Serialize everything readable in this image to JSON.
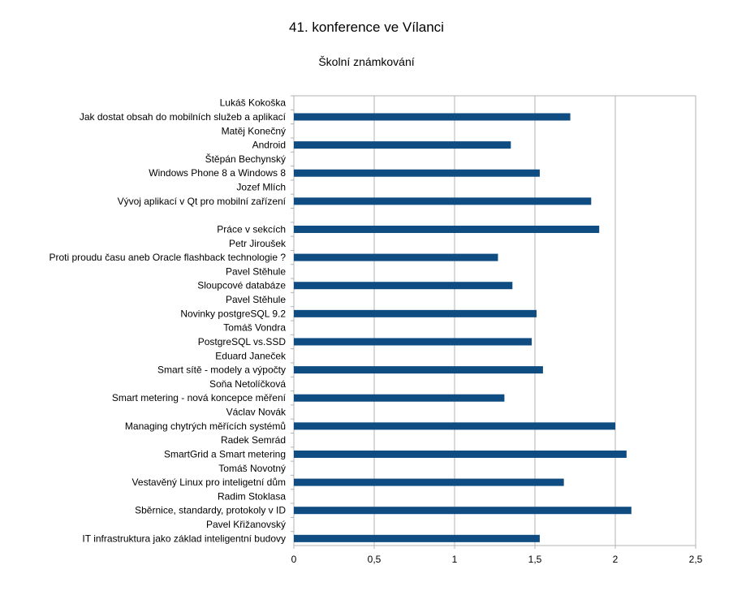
{
  "chart_data": {
    "type": "bar",
    "orientation": "horizontal",
    "title": "41. konference ve Vílanci",
    "subtitle": "Školní známkování",
    "xlabel": "",
    "ylabel": "",
    "xlim": [
      0,
      2.5
    ],
    "x_ticks": [
      "0",
      "0,5",
      "1",
      "1,5",
      "2",
      "2,5"
    ],
    "grid": "vertical",
    "legend": "none",
    "bar_color": "#0f4c81",
    "categories": [
      "Lukáš Kokoška",
      "Jak dostat obsah do mobilních služeb a aplikací",
      "Matěj Konečný",
      "Android",
      "Štěpán Bechynský",
      "Windows Phone 8 a Windows 8",
      "Jozef Mlích",
      "Vývoj aplikací v Qt pro mobilní zařízení",
      "",
      "Práce v sekcích",
      "Petr Jiroušek",
      "Proti proudu času aneb Oracle flashback technologie ?",
      "Pavel Stěhule",
      "Sloupcové databáze",
      "Pavel Stěhule",
      "Novinky postgreSQL 9.2",
      "Tomáš Vondra",
      "PostgreSQL vs.SSD",
      "Eduard Janeček",
      "Smart sítě - modely a výpočty",
      "Soňa Netolíčková",
      "Smart metering - nová koncepce měření",
      "Václav Novák",
      "Managing chytrých měřících systémů",
      "Radek Semrád",
      "SmartGrid a Smart metering",
      "Tomáš Novotný",
      "Vestavěný Linux pro inteligetní dům",
      "Radim Stoklasa",
      "Sběrnice, standardy, protokoly v ID",
      "Pavel Křižanovský",
      "IT infrastruktura jako základ inteligentní budovy"
    ],
    "values": [
      null,
      1.72,
      null,
      1.35,
      null,
      1.53,
      null,
      1.85,
      null,
      1.9,
      null,
      1.27,
      null,
      1.36,
      null,
      1.51,
      null,
      1.48,
      null,
      1.55,
      null,
      1.31,
      null,
      2.0,
      null,
      2.07,
      null,
      1.68,
      null,
      2.1,
      null,
      1.53
    ]
  }
}
